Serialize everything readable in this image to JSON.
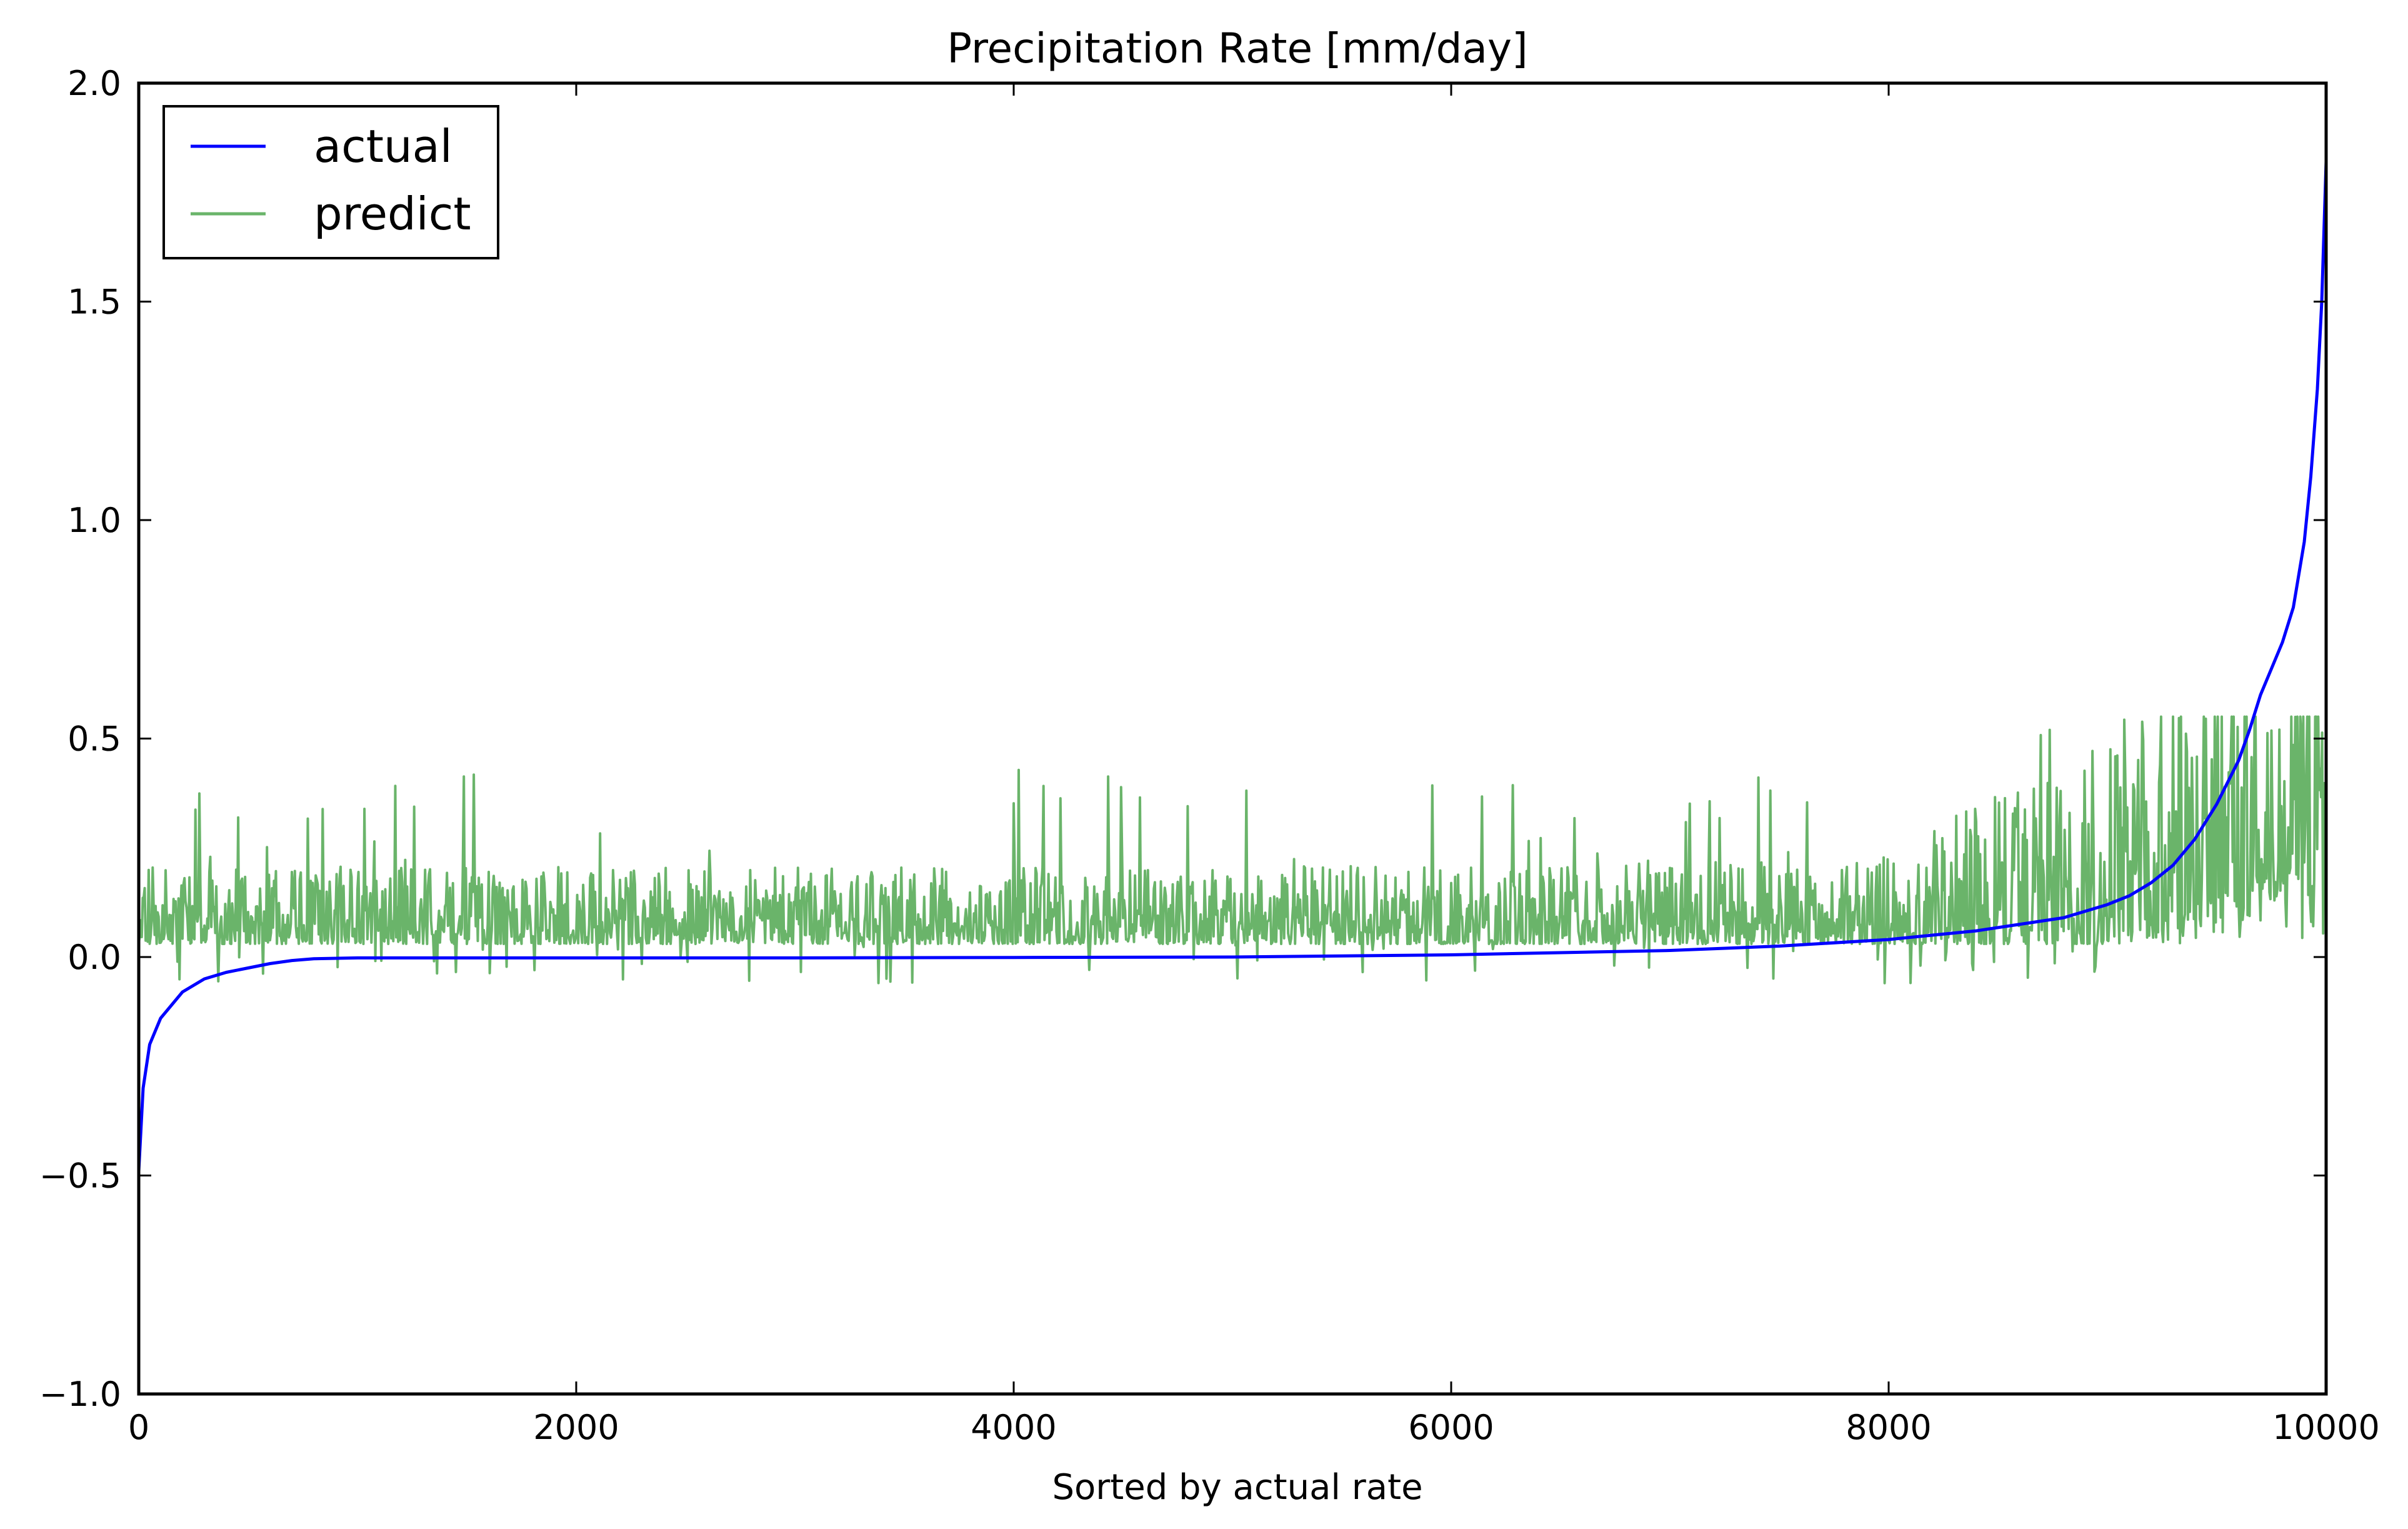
{
  "chart_data": {
    "type": "line",
    "title": "Precipitation Rate [mm/day]",
    "xlabel": "Sorted by actual rate",
    "ylabel": "",
    "xlim": [
      0,
      10000
    ],
    "ylim": [
      -1.0,
      2.0
    ],
    "xticks": [
      0,
      2000,
      4000,
      6000,
      8000,
      10000
    ],
    "xtick_labels": [
      "0",
      "2000",
      "4000",
      "6000",
      "8000",
      "10000"
    ],
    "yticks": [
      -1.0,
      -0.5,
      0.0,
      0.5,
      1.0,
      1.5,
      2.0
    ],
    "ytick_labels": [
      "−1.0",
      "−0.5",
      "0.0",
      "0.5",
      "1.0",
      "1.5",
      "2.0"
    ],
    "grid": false,
    "legend_position": "top-left",
    "series": [
      {
        "name": "actual",
        "color": "#0000ff",
        "x": [
          0,
          20,
          50,
          100,
          150,
          200,
          300,
          400,
          500,
          600,
          700,
          800,
          1000,
          1500,
          2000,
          3000,
          4000,
          5000,
          6000,
          6500,
          7000,
          7500,
          8000,
          8200,
          8400,
          8600,
          8800,
          9000,
          9100,
          9200,
          9300,
          9400,
          9500,
          9600,
          9650,
          9700,
          9750,
          9800,
          9850,
          9900,
          9930,
          9960,
          9980,
          10000
        ],
        "y": [
          -0.49,
          -0.3,
          -0.2,
          -0.14,
          -0.11,
          -0.08,
          -0.05,
          -0.035,
          -0.025,
          -0.015,
          -0.008,
          -0.004,
          -0.002,
          -0.002,
          -0.002,
          -0.002,
          -0.001,
          0.0,
          0.005,
          0.01,
          0.015,
          0.025,
          0.04,
          0.05,
          0.06,
          0.075,
          0.09,
          0.12,
          0.14,
          0.17,
          0.21,
          0.27,
          0.35,
          0.45,
          0.52,
          0.6,
          0.66,
          0.72,
          0.8,
          0.95,
          1.1,
          1.3,
          1.5,
          1.82
        ]
      },
      {
        "name": "predict",
        "color": "#6ab46a",
        "x_range": [
          0,
          10000
        ],
        "baseline": 0.03,
        "y_min": -0.07,
        "y_max": 0.55
      }
    ]
  }
}
